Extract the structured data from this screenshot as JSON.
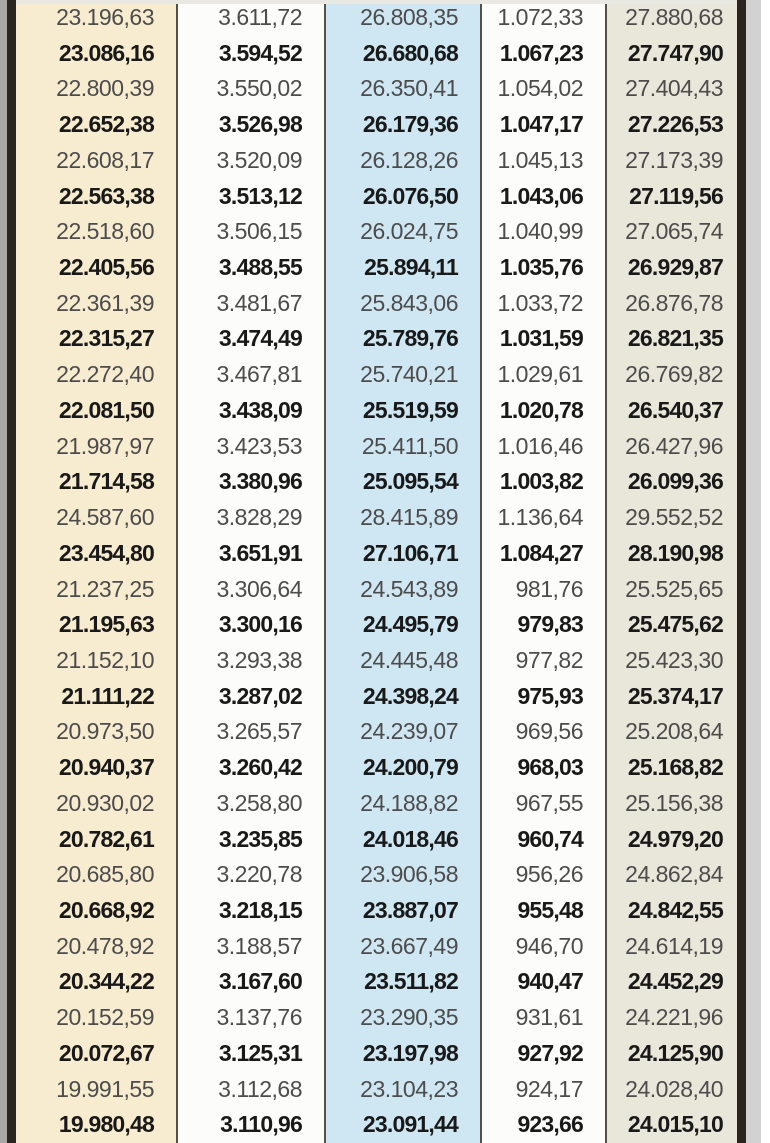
{
  "table": {
    "description": "exchange-rate-table",
    "columns": [
      {
        "name": "column-1",
        "bg": "#f8ecd0"
      },
      {
        "name": "column-2",
        "bg": "#fcfcfa"
      },
      {
        "name": "column-3",
        "bg": "#cfe7f3"
      },
      {
        "name": "column-4",
        "bg": "#fcfcfa"
      },
      {
        "name": "column-5",
        "bg": "#e9e7da"
      }
    ],
    "rows": [
      {
        "bold": false,
        "values": [
          "23.196,63",
          "3.611,72",
          "26.808,35",
          "1.072,33",
          "27.880,68"
        ]
      },
      {
        "bold": true,
        "values": [
          "23.086,16",
          "3.594,52",
          "26.680,68",
          "1.067,23",
          "27.747,90"
        ]
      },
      {
        "bold": false,
        "values": [
          "22.800,39",
          "3.550,02",
          "26.350,41",
          "1.054,02",
          "27.404,43"
        ]
      },
      {
        "bold": true,
        "values": [
          "22.652,38",
          "3.526,98",
          "26.179,36",
          "1.047,17",
          "27.226,53"
        ]
      },
      {
        "bold": false,
        "values": [
          "22.608,17",
          "3.520,09",
          "26.128,26",
          "1.045,13",
          "27.173,39"
        ]
      },
      {
        "bold": true,
        "values": [
          "22.563,38",
          "3.513,12",
          "26.076,50",
          "1.043,06",
          "27.119,56"
        ]
      },
      {
        "bold": false,
        "values": [
          "22.518,60",
          "3.506,15",
          "26.024,75",
          "1.040,99",
          "27.065,74"
        ]
      },
      {
        "bold": true,
        "values": [
          "22.405,56",
          "3.488,55",
          "25.894,11",
          "1.035,76",
          "26.929,87"
        ]
      },
      {
        "bold": false,
        "values": [
          "22.361,39",
          "3.481,67",
          "25.843,06",
          "1.033,72",
          "26.876,78"
        ]
      },
      {
        "bold": true,
        "values": [
          "22.315,27",
          "3.474,49",
          "25.789,76",
          "1.031,59",
          "26.821,35"
        ]
      },
      {
        "bold": false,
        "values": [
          "22.272,40",
          "3.467,81",
          "25.740,21",
          "1.029,61",
          "26.769,82"
        ]
      },
      {
        "bold": true,
        "values": [
          "22.081,50",
          "3.438,09",
          "25.519,59",
          "1.020,78",
          "26.540,37"
        ]
      },
      {
        "bold": false,
        "values": [
          "21.987,97",
          "3.423,53",
          "25.411,50",
          "1.016,46",
          "26.427,96"
        ]
      },
      {
        "bold": true,
        "values": [
          "21.714,58",
          "3.380,96",
          "25.095,54",
          "1.003,82",
          "26.099,36"
        ]
      },
      {
        "bold": false,
        "values": [
          "24.587,60",
          "3.828,29",
          "28.415,89",
          "1.136,64",
          "29.552,52"
        ]
      },
      {
        "bold": true,
        "values": [
          "23.454,80",
          "3.651,91",
          "27.106,71",
          "1.084,27",
          "28.190,98"
        ]
      },
      {
        "bold": false,
        "values": [
          "21.237,25",
          "3.306,64",
          "24.543,89",
          "981,76",
          "25.525,65"
        ]
      },
      {
        "bold": true,
        "values": [
          "21.195,63",
          "3.300,16",
          "24.495,79",
          "979,83",
          "25.475,62"
        ]
      },
      {
        "bold": false,
        "values": [
          "21.152,10",
          "3.293,38",
          "24.445,48",
          "977,82",
          "25.423,30"
        ]
      },
      {
        "bold": true,
        "values": [
          "21.111,22",
          "3.287,02",
          "24.398,24",
          "975,93",
          "25.374,17"
        ]
      },
      {
        "bold": false,
        "values": [
          "20.973,50",
          "3.265,57",
          "24.239,07",
          "969,56",
          "25.208,64"
        ]
      },
      {
        "bold": true,
        "values": [
          "20.940,37",
          "3.260,42",
          "24.200,79",
          "968,03",
          "25.168,82"
        ]
      },
      {
        "bold": false,
        "values": [
          "20.930,02",
          "3.258,80",
          "24.188,82",
          "967,55",
          "25.156,38"
        ]
      },
      {
        "bold": true,
        "values": [
          "20.782,61",
          "3.235,85",
          "24.018,46",
          "960,74",
          "24.979,20"
        ]
      },
      {
        "bold": false,
        "values": [
          "20.685,80",
          "3.220,78",
          "23.906,58",
          "956,26",
          "24.862,84"
        ]
      },
      {
        "bold": true,
        "values": [
          "20.668,92",
          "3.218,15",
          "23.887,07",
          "955,48",
          "24.842,55"
        ]
      },
      {
        "bold": false,
        "values": [
          "20.478,92",
          "3.188,57",
          "23.667,49",
          "946,70",
          "24.614,19"
        ]
      },
      {
        "bold": true,
        "values": [
          "20.344,22",
          "3.167,60",
          "23.511,82",
          "940,47",
          "24.452,29"
        ]
      },
      {
        "bold": false,
        "values": [
          "20.152,59",
          "3.137,76",
          "23.290,35",
          "931,61",
          "24.221,96"
        ]
      },
      {
        "bold": true,
        "values": [
          "20.072,67",
          "3.125,31",
          "23.197,98",
          "927,92",
          "24.125,90"
        ]
      },
      {
        "bold": false,
        "values": [
          "19.991,55",
          "3.112,68",
          "23.104,23",
          "924,17",
          "24.028,40"
        ]
      },
      {
        "bold": true,
        "values": [
          "19.980,48",
          "3.110,96",
          "23.091,44",
          "923,66",
          "24.015,10"
        ]
      }
    ]
  },
  "colors": {
    "frame_border": "#2b241f",
    "column_separator": "#55504a",
    "regular_text": "#4c4c4c",
    "bold_text": "#191919",
    "left_gutter": "#a8a8a8",
    "right_gutter": "#d2d2d2"
  }
}
